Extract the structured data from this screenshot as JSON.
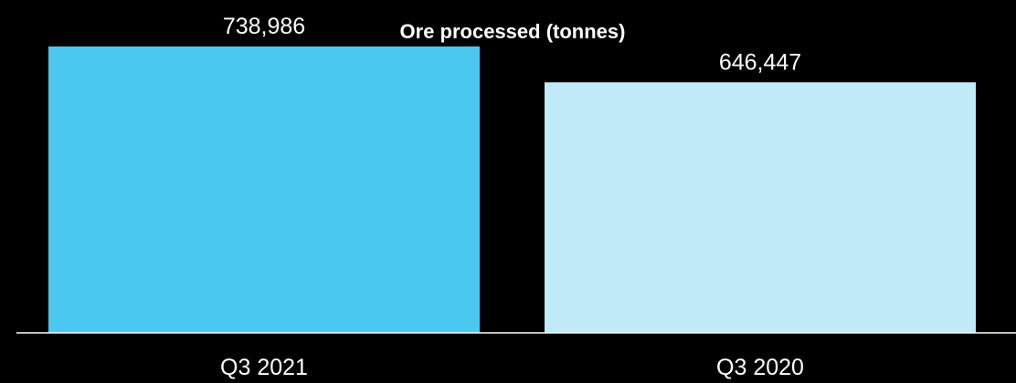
{
  "chart_data": {
    "type": "bar",
    "title": "Ore processed (tonnes)",
    "categories": [
      "Q3 2021",
      "Q3 2020"
    ],
    "values": [
      738986,
      646447
    ],
    "data_labels": [
      "738,986",
      "646,447"
    ],
    "colors": [
      "#4ac8ef",
      "#c0eaf8"
    ],
    "xlabel": "",
    "ylabel": "",
    "ylim": [
      0,
      800000
    ],
    "grid": false,
    "legend": "none"
  },
  "theme": {
    "background": "#000000",
    "text": "#ffffff",
    "axis": "#ffffff"
  }
}
